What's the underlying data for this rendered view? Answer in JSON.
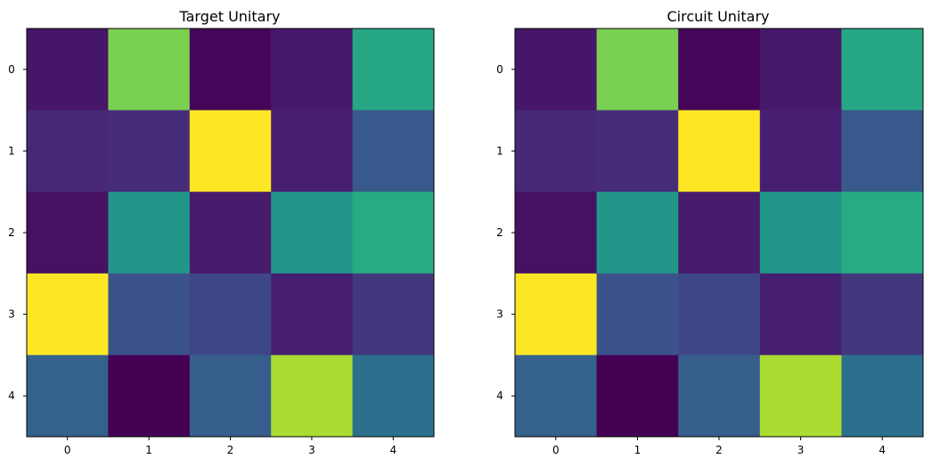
{
  "chart_data": [
    {
      "type": "heatmap",
      "title": "Target Unitary",
      "xlabel": "",
      "ylabel": "",
      "x_ticks": [
        "0",
        "1",
        "2",
        "3",
        "4"
      ],
      "y_ticks": [
        "0",
        "1",
        "2",
        "3",
        "4"
      ],
      "colormap": "viridis",
      "value_range": [
        0,
        1
      ],
      "values": [
        [
          0.08,
          0.8,
          0.02,
          0.09,
          0.6
        ],
        [
          0.14,
          0.15,
          1.0,
          0.11,
          0.28
        ],
        [
          0.06,
          0.53,
          0.1,
          0.52,
          0.62
        ],
        [
          1.0,
          0.25,
          0.22,
          0.11,
          0.18
        ],
        [
          0.32,
          0.0,
          0.3,
          0.88,
          0.37
        ]
      ]
    },
    {
      "type": "heatmap",
      "title": "Circuit Unitary",
      "xlabel": "",
      "ylabel": "",
      "x_ticks": [
        "0",
        "1",
        "2",
        "3",
        "4"
      ],
      "y_ticks": [
        "0",
        "1",
        "2",
        "3",
        "4"
      ],
      "colormap": "viridis",
      "value_range": [
        0,
        1
      ],
      "values": [
        [
          0.08,
          0.8,
          0.02,
          0.09,
          0.6
        ],
        [
          0.14,
          0.15,
          1.0,
          0.11,
          0.28
        ],
        [
          0.06,
          0.53,
          0.1,
          0.52,
          0.62
        ],
        [
          1.0,
          0.25,
          0.22,
          0.11,
          0.18
        ],
        [
          0.32,
          0.0,
          0.3,
          0.88,
          0.37
        ]
      ]
    }
  ]
}
